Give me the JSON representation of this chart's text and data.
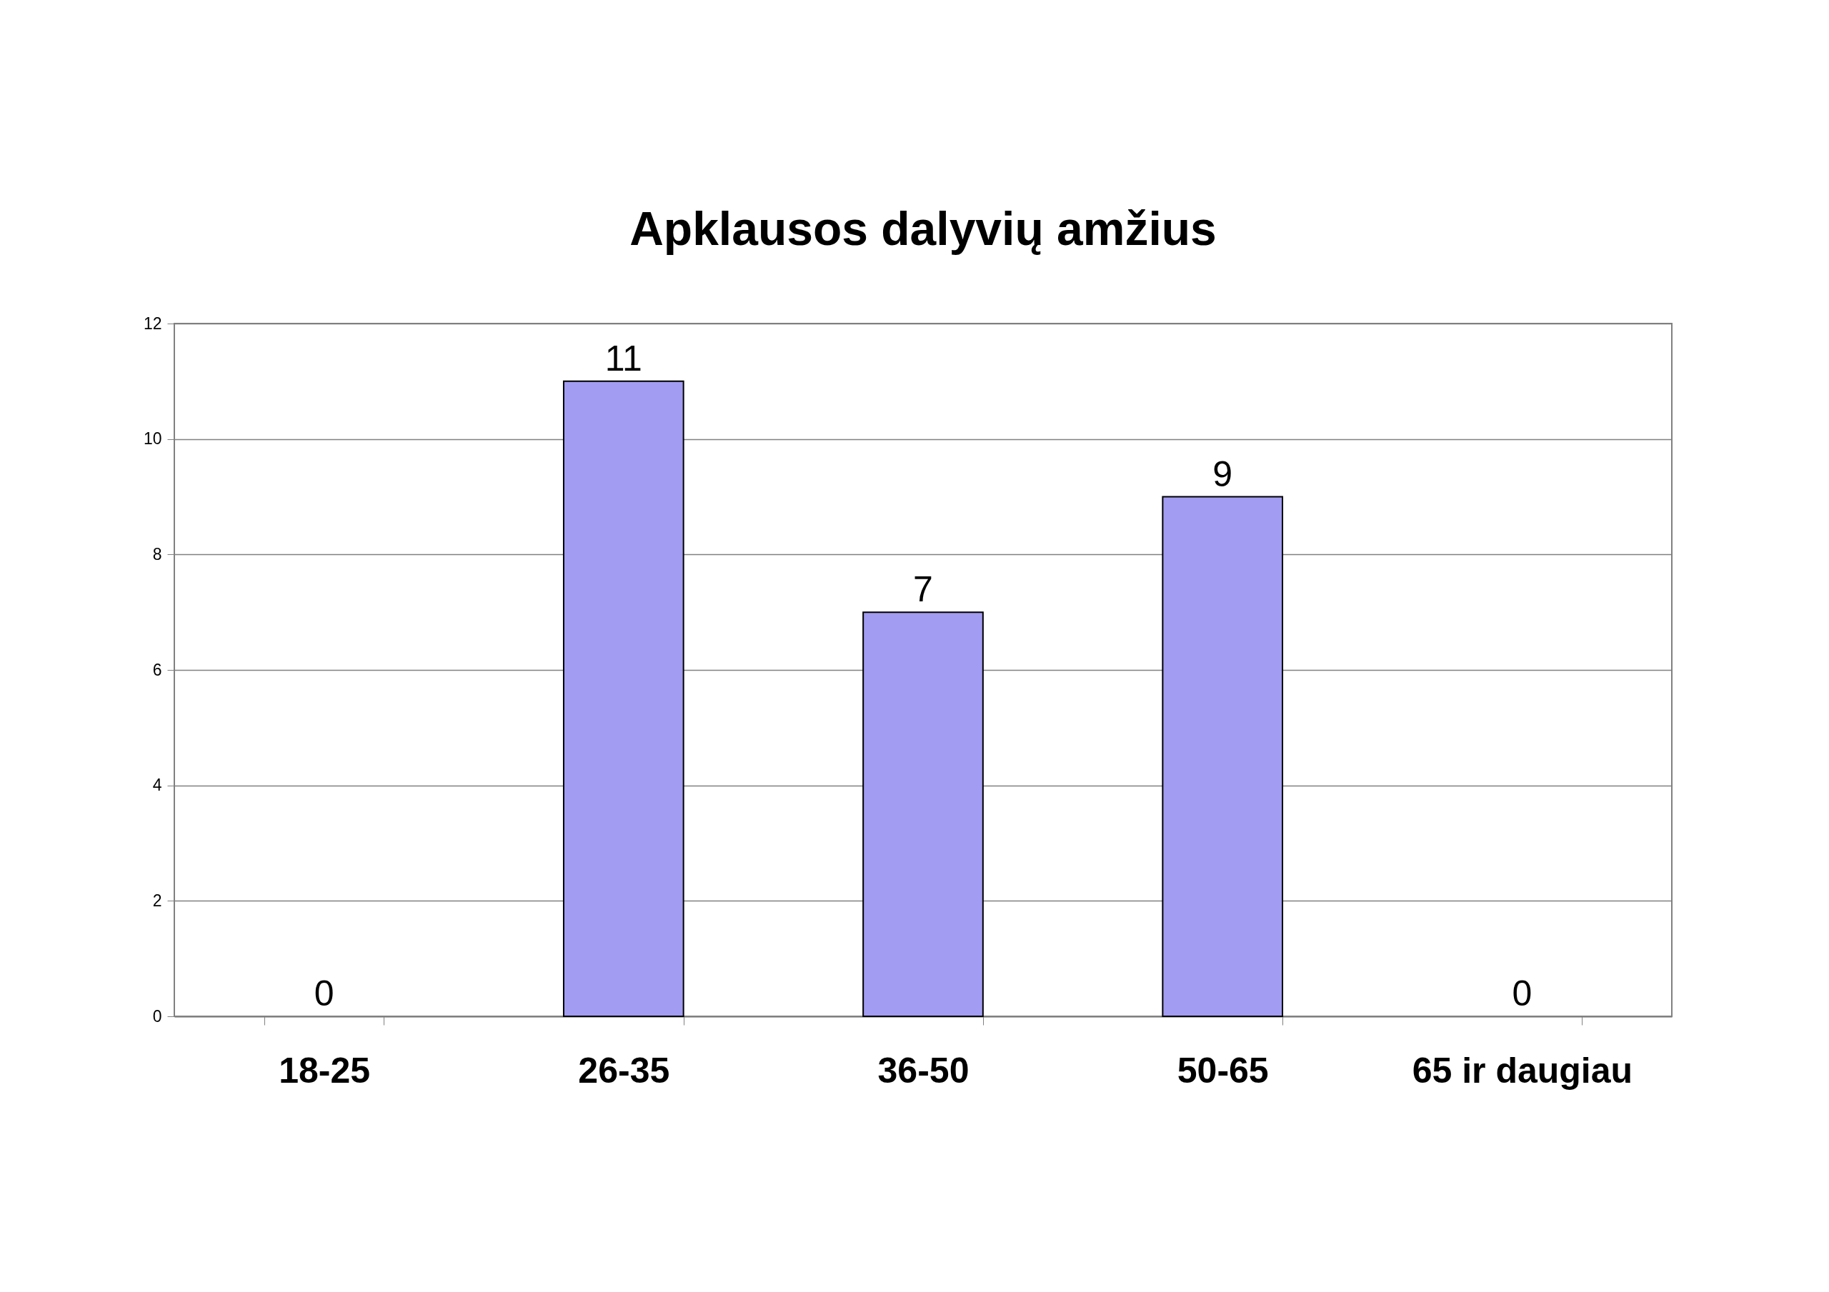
{
  "chart_data": {
    "type": "bar",
    "title": "Apklausos dalyvių amžius",
    "categories": [
      "18-25",
      "26-35",
      "36-50",
      "50-65",
      "65 ir daugiau"
    ],
    "values": [
      0,
      11,
      7,
      9,
      0
    ],
    "color": "#a29cf2",
    "ylim": [
      0,
      12
    ],
    "yticks": [
      0,
      2,
      4,
      6,
      8,
      10,
      12
    ],
    "grid": "y",
    "data_labels": true
  }
}
